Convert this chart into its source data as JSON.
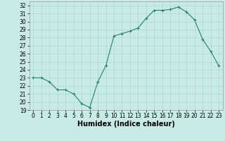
{
  "x": [
    0,
    1,
    2,
    3,
    4,
    5,
    6,
    7,
    8,
    9,
    10,
    11,
    12,
    13,
    14,
    15,
    16,
    17,
    18,
    19,
    20,
    21,
    22,
    23
  ],
  "y": [
    23,
    23,
    22.5,
    21.5,
    21.5,
    21,
    19.8,
    19.3,
    22.5,
    24.5,
    28.2,
    28.5,
    28.8,
    29.2,
    30.4,
    31.4,
    31.4,
    31.5,
    31.8,
    31.2,
    30.2,
    27.8,
    26.3,
    24.5
  ],
  "line_color": "#2e7d6e",
  "marker": "+",
  "marker_size": 3,
  "bg_color": "#c8ebe8",
  "grid_color": "#aad8d3",
  "xlabel": "Humidex (Indice chaleur)",
  "xlim": [
    -0.5,
    23.5
  ],
  "ylim": [
    19,
    32.5
  ],
  "yticks": [
    19,
    20,
    21,
    22,
    23,
    24,
    25,
    26,
    27,
    28,
    29,
    30,
    31,
    32
  ],
  "xticks": [
    0,
    1,
    2,
    3,
    4,
    5,
    6,
    7,
    8,
    9,
    10,
    11,
    12,
    13,
    14,
    15,
    16,
    17,
    18,
    19,
    20,
    21,
    22,
    23
  ],
  "label_fontsize": 7,
  "tick_fontsize": 5.5
}
